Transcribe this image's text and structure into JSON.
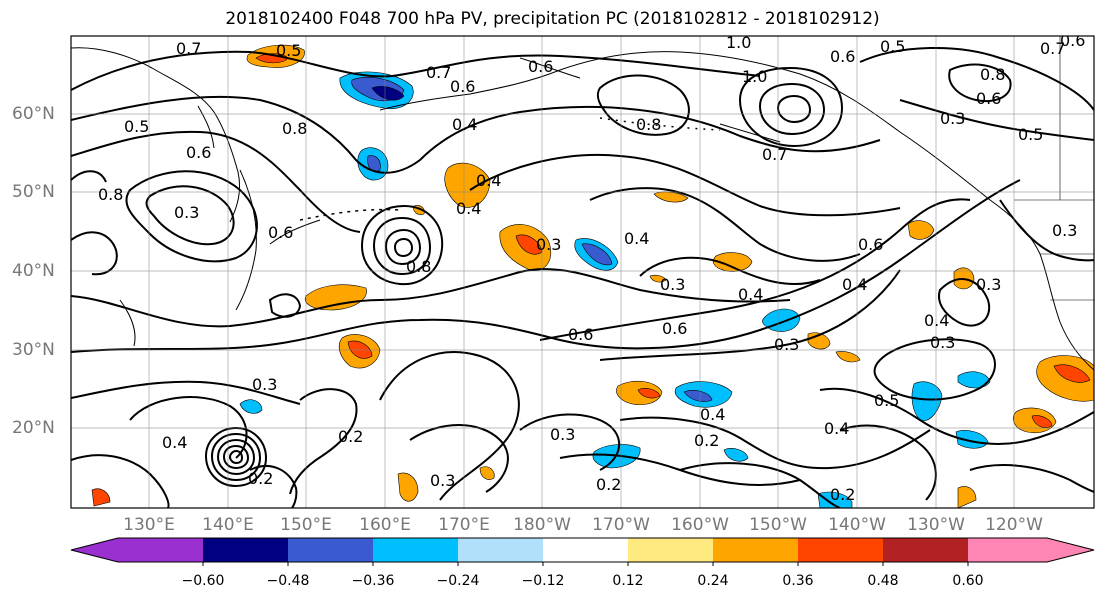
{
  "title": "2018102400 F048 700 hPa PV, precipitation PC (2018102812 - 2018102912)",
  "lat_labels": [
    "60°N",
    "50°N",
    "40°N",
    "30°N",
    "20°N"
  ],
  "lon_labels": [
    "130°E",
    "140°E",
    "150°E",
    "160°E",
    "170°E",
    "180°W",
    "170°W",
    "160°W",
    "150°W",
    "140°W",
    "130°W",
    "120°W"
  ],
  "contour_labels": [
    "0.7",
    "0.5",
    "0.7",
    "0.6",
    "0.6",
    "1.0",
    "0.5",
    "0.6",
    "0.7",
    "0.8",
    "0.6",
    "0.6",
    "0.4",
    "0.5",
    "0.8",
    "0.5",
    "0.6",
    "0.3",
    "1.0",
    "0.8",
    "0.8",
    "0.7",
    "0.3",
    "0.4",
    "0.4",
    "0.6",
    "0.3",
    "0.4",
    "0.3",
    "0.8",
    "0.4",
    "0.6",
    "0.3",
    "0.6",
    "0.6",
    "0.4",
    "0.3",
    "0.3",
    "0.5",
    "0.4",
    "0.3",
    "0.4",
    "0.2",
    "0.3",
    "0.2",
    "0.4",
    "0.2",
    "0.4",
    "0.3",
    "0.2",
    "0.2",
    "0.3"
  ],
  "colorbar": {
    "ticks": [
      "−0.60",
      "−0.48",
      "−0.36",
      "−0.24",
      "−0.12",
      "0.12",
      "0.24",
      "0.36",
      "0.48",
      "0.60"
    ],
    "colors": [
      "#9b30d0",
      "#000080",
      "#3a5bd0",
      "#00bfff",
      "#b0e0fa",
      "#ffffff",
      "#ffea80",
      "#ffa500",
      "#ff4500",
      "#b22222",
      "#ff85b4"
    ]
  }
}
